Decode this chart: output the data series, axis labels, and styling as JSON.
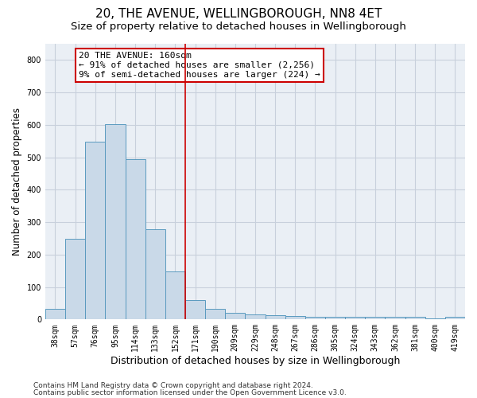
{
  "title": "20, THE AVENUE, WELLINGBOROUGH, NN8 4ET",
  "subtitle": "Size of property relative to detached houses in Wellingborough",
  "xlabel": "Distribution of detached houses by size in Wellingborough",
  "ylabel": "Number of detached properties",
  "categories": [
    "38sqm",
    "57sqm",
    "76sqm",
    "95sqm",
    "114sqm",
    "133sqm",
    "152sqm",
    "171sqm",
    "190sqm",
    "209sqm",
    "229sqm",
    "248sqm",
    "267sqm",
    "286sqm",
    "305sqm",
    "324sqm",
    "343sqm",
    "362sqm",
    "381sqm",
    "400sqm",
    "419sqm"
  ],
  "values": [
    33,
    248,
    548,
    603,
    493,
    278,
    148,
    60,
    32,
    20,
    15,
    12,
    10,
    7,
    7,
    8,
    8,
    8,
    7,
    3,
    7
  ],
  "bar_color": "#c9d9e8",
  "bar_edge_color": "#5a9abf",
  "vline_x": 6.5,
  "vline_color": "#cc0000",
  "annotation_line1": "20 THE AVENUE: 160sqm",
  "annotation_line2": "← 91% of detached houses are smaller (2,256)",
  "annotation_line3": "9% of semi-detached houses are larger (224) →",
  "annotation_box_color": "#cc0000",
  "ylim": [
    0,
    850
  ],
  "yticks": [
    0,
    100,
    200,
    300,
    400,
    500,
    600,
    700,
    800
  ],
  "grid_color": "#c8d0dc",
  "bg_color": "#eaeff5",
  "footer1": "Contains HM Land Registry data © Crown copyright and database right 2024.",
  "footer2": "Contains public sector information licensed under the Open Government Licence v3.0.",
  "title_fontsize": 11,
  "subtitle_fontsize": 9.5,
  "xlabel_fontsize": 9,
  "ylabel_fontsize": 8.5,
  "tick_fontsize": 7,
  "annotation_fontsize": 8,
  "footer_fontsize": 6.5
}
